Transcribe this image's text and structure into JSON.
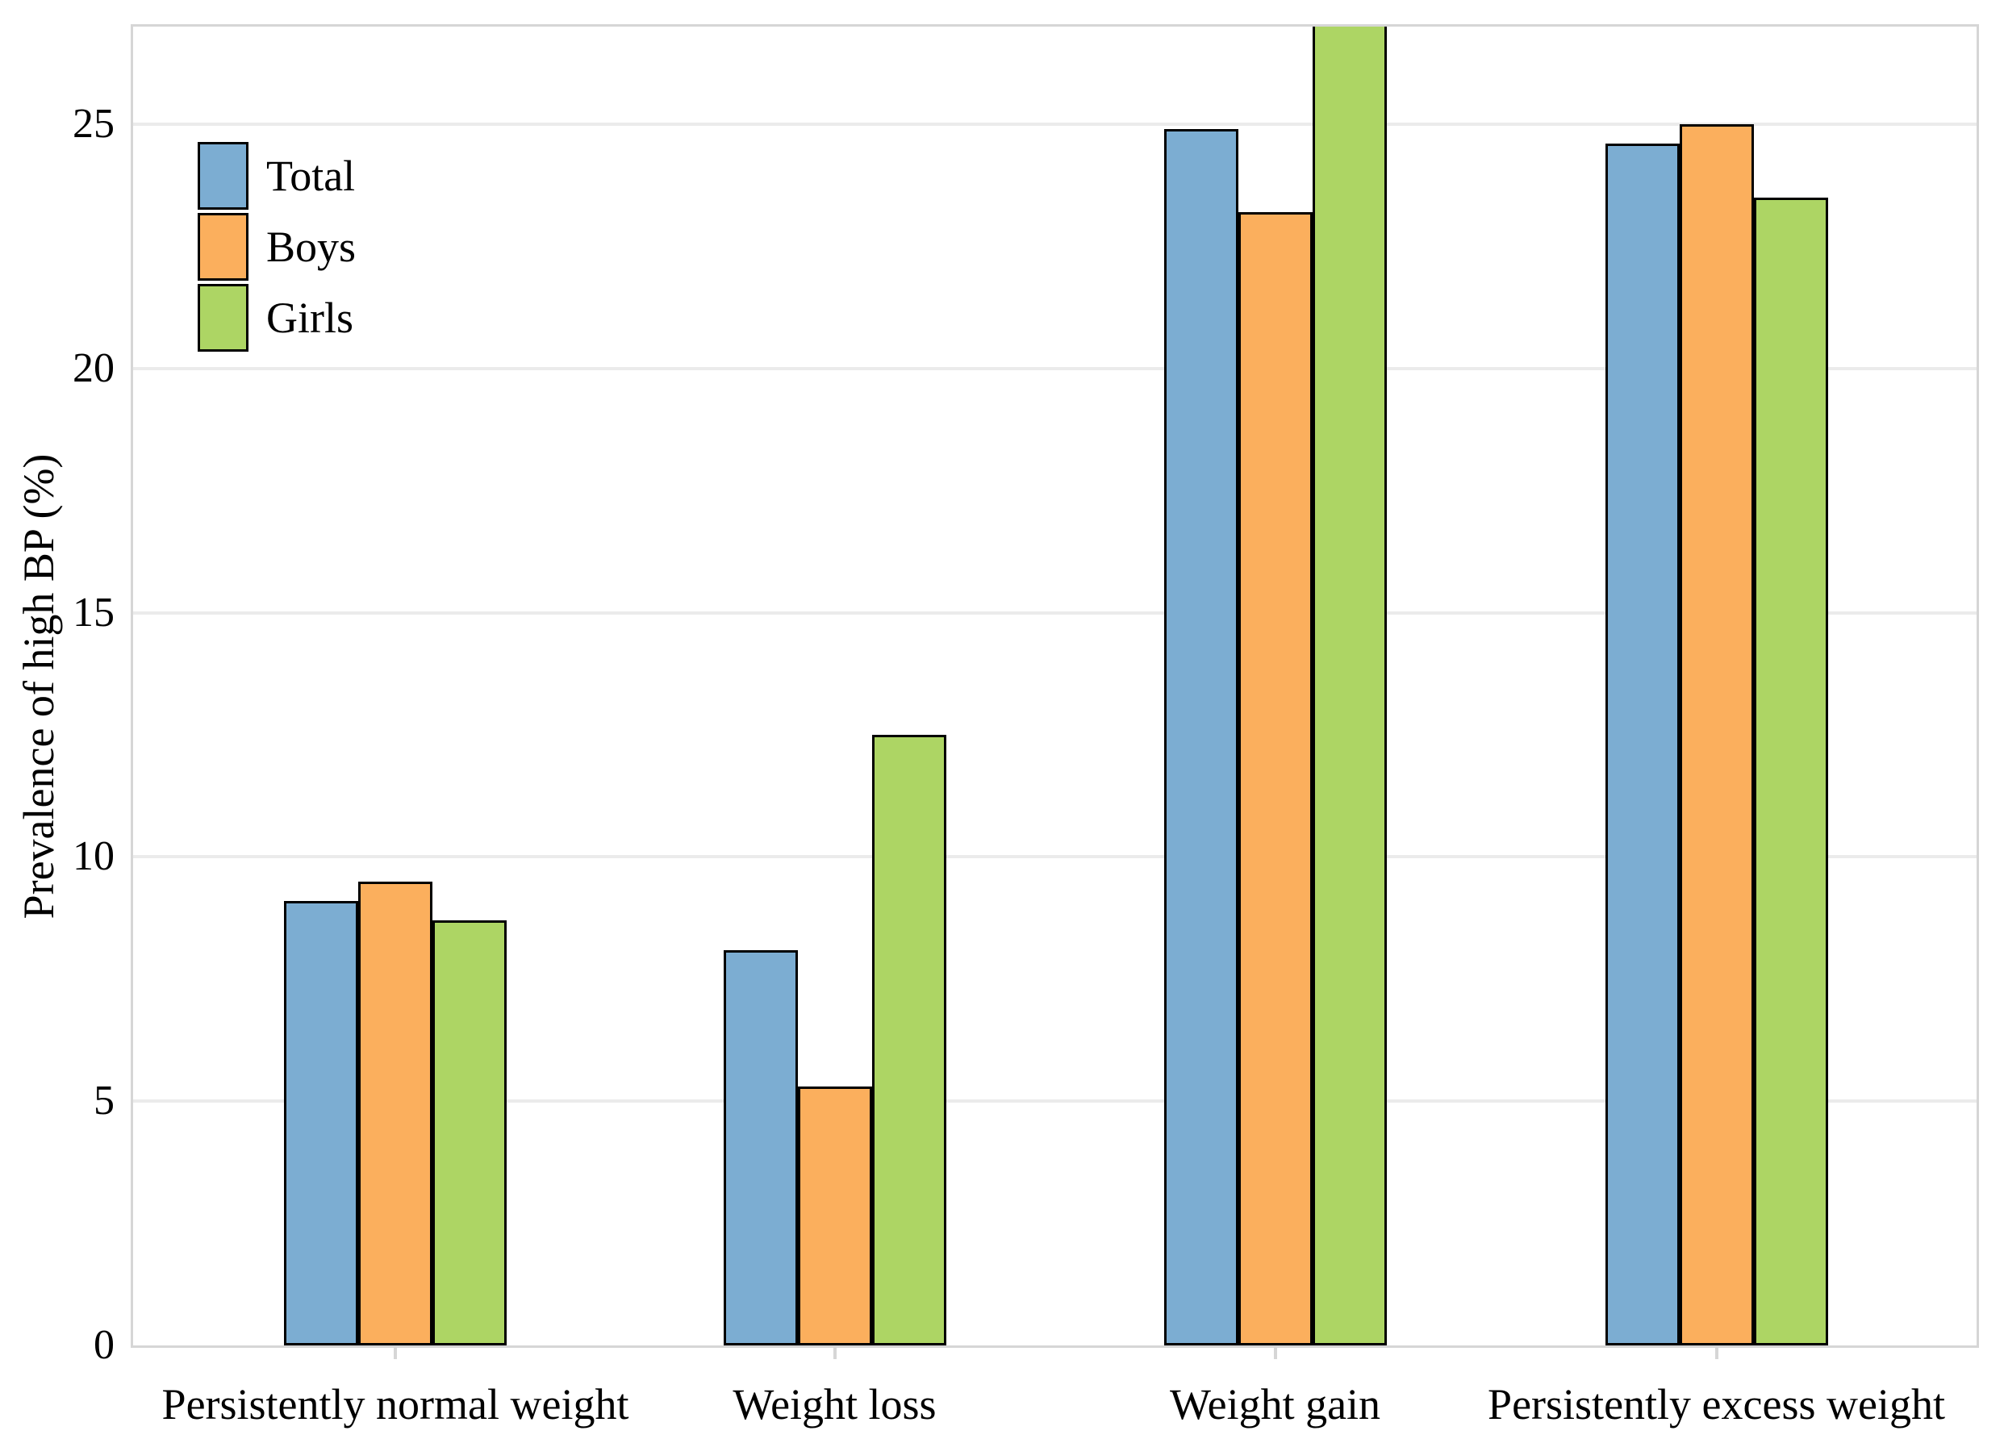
{
  "chart_data": {
    "type": "bar",
    "title": "",
    "xlabel": "",
    "ylabel": "Prevalence of high BP (%)",
    "categories": [
      "Persistently normal weight",
      "Weight loss",
      "Weight gain",
      "Persistently excess weight"
    ],
    "series": [
      {
        "name": "Total",
        "color": "#7CADD2",
        "values": [
          9.1,
          8.1,
          24.9,
          24.6
        ]
      },
      {
        "name": "Boys",
        "color": "#FBAF5D",
        "values": [
          9.5,
          5.3,
          23.2,
          25.0
        ]
      },
      {
        "name": "Girls",
        "color": "#ADD564",
        "values": [
          8.7,
          12.5,
          27.1,
          23.5
        ]
      }
    ],
    "ylim": [
      0,
      27
    ],
    "yticks": [
      0,
      5,
      10,
      15,
      20,
      25
    ],
    "grid": true,
    "legend_position": "upper-left-inside",
    "clipped_bar": {
      "series": "Girls",
      "category": "Weight gain",
      "note": "bar exceeds axis maximum and is clipped at the plot top"
    }
  },
  "colors": {
    "background": "#FFFFFF",
    "gridline": "#EBEBEB",
    "axis_border": "#D6D6D6",
    "bar_outline": "#000000",
    "text": "#000000"
  }
}
